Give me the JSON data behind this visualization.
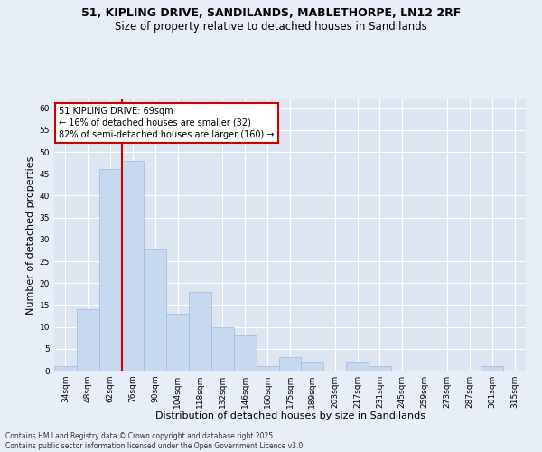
{
  "title_line1": "51, KIPLING DRIVE, SANDILANDS, MABLETHORPE, LN12 2RF",
  "title_line2": "Size of property relative to detached houses in Sandilands",
  "xlabel": "Distribution of detached houses by size in Sandilands",
  "ylabel": "Number of detached properties",
  "categories": [
    "34sqm",
    "48sqm",
    "62sqm",
    "76sqm",
    "90sqm",
    "104sqm",
    "118sqm",
    "132sqm",
    "146sqm",
    "160sqm",
    "175sqm",
    "189sqm",
    "203sqm",
    "217sqm",
    "231sqm",
    "245sqm",
    "259sqm",
    "273sqm",
    "287sqm",
    "301sqm",
    "315sqm"
  ],
  "values": [
    1,
    14,
    46,
    48,
    28,
    13,
    18,
    10,
    8,
    1,
    3,
    2,
    0,
    2,
    1,
    0,
    0,
    0,
    0,
    1,
    0
  ],
  "bar_color": "#c6d9f0",
  "bar_edge_color": "#a0b8d8",
  "vline_color": "#cc0000",
  "vline_pos": 2.5,
  "annotation_text": "51 KIPLING DRIVE: 69sqm\n← 16% of detached houses are smaller (32)\n82% of semi-detached houses are larger (160) →",
  "annotation_box_color": "#ffffff",
  "annotation_edge_color": "#cc0000",
  "annotation_fontsize": 7,
  "ylim": [
    0,
    62
  ],
  "yticks": [
    0,
    5,
    10,
    15,
    20,
    25,
    30,
    35,
    40,
    45,
    50,
    55,
    60
  ],
  "bg_color": "#e8eef7",
  "plot_bg_color": "#dde6f0",
  "grid_color": "#ffffff",
  "title_fontsize": 9,
  "title2_fontsize": 8.5,
  "label_fontsize": 8,
  "tick_fontsize": 6.5,
  "footer_text": "Contains HM Land Registry data © Crown copyright and database right 2025.\nContains public sector information licensed under the Open Government Licence v3.0.",
  "footer_fontsize": 5.5
}
